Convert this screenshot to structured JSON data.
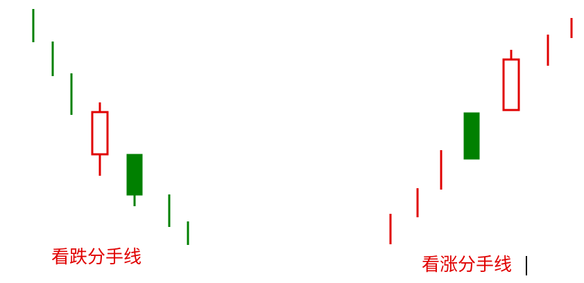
{
  "colors": {
    "up": "#e00000",
    "down": "#008000",
    "caption": "#e00000",
    "cursor": "#000000",
    "background": "#ffffff"
  },
  "chart_data": [
    {
      "type": "candlestick",
      "caption": "看跌分手线",
      "y_scale": "unlabeled",
      "candles": [
        {
          "direction": "down",
          "open": 396,
          "close": 396,
          "high": 396,
          "low": 348
        },
        {
          "direction": "down",
          "open": 349,
          "close": 349,
          "high": 349,
          "low": 299
        },
        {
          "direction": "down",
          "open": 303,
          "close": 303,
          "high": 303,
          "low": 243
        },
        {
          "direction": "up",
          "open": 186,
          "close": 247,
          "high": 261,
          "low": 155
        },
        {
          "direction": "down",
          "open": 186,
          "close": 127,
          "high": 186,
          "low": 111
        },
        {
          "direction": "down",
          "open": 128,
          "close": 128,
          "high": 128,
          "low": 81
        },
        {
          "direction": "down",
          "open": 89,
          "close": 89,
          "high": 89,
          "low": 55
        }
      ]
    },
    {
      "type": "candlestick",
      "caption": "看涨分手线",
      "y_scale": "unlabeled",
      "candles": [
        {
          "direction": "up",
          "open": 56,
          "close": 56,
          "high": 100,
          "low": 56
        },
        {
          "direction": "up",
          "open": 95,
          "close": 95,
          "high": 137,
          "low": 95
        },
        {
          "direction": "up",
          "open": 135,
          "close": 135,
          "high": 192,
          "low": 135
        },
        {
          "direction": "down",
          "open": 246,
          "close": 179,
          "high": 246,
          "low": 179
        },
        {
          "direction": "up",
          "open": 250,
          "close": 323,
          "high": 337,
          "low": 250
        },
        {
          "direction": "up",
          "open": 314,
          "close": 314,
          "high": 359,
          "low": 314
        },
        {
          "direction": "up",
          "open": 354,
          "close": 354,
          "high": 383,
          "low": 354
        }
      ]
    }
  ]
}
